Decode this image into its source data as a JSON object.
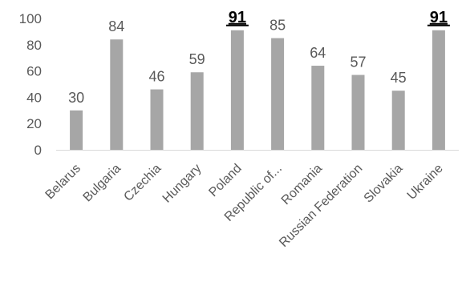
{
  "chart_data": {
    "type": "bar",
    "categories": [
      "Belarus",
      "Bulgaria",
      "Czechia",
      "Hungary",
      "Poland",
      "Republic of...",
      "Romania",
      "Russian Federation",
      "Slovakia",
      "Ukraine"
    ],
    "values": [
      30,
      84,
      46,
      59,
      91,
      85,
      64,
      57,
      45,
      91
    ],
    "highlighted": [
      false,
      false,
      false,
      false,
      true,
      false,
      false,
      false,
      false,
      true
    ],
    "yticks": [
      0,
      20,
      40,
      60,
      80,
      100
    ],
    "ylim": [
      0,
      100
    ],
    "grid": false,
    "legend": "none",
    "colors": {
      "bar": "#a6a6a6",
      "axis": "#d9d9d9",
      "label": "#595959",
      "highlight_label": "#000000"
    }
  }
}
